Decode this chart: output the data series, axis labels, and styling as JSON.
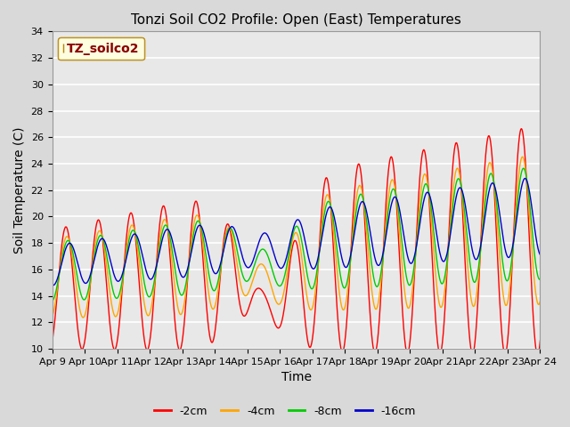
{
  "title": "Tonzi Soil CO2 Profile: Open (East) Temperatures",
  "xlabel": "Time",
  "ylabel": "Soil Temperature (C)",
  "ylim": [
    10,
    34
  ],
  "xlim": [
    0,
    15
  ],
  "background_color": "#d9d9d9",
  "plot_bg": "#e8e8e8",
  "grid_color": "white",
  "legend_label": "TZ_soilco2",
  "series_labels": [
    "-2cm",
    "-4cm",
    "-8cm",
    "-16cm"
  ],
  "series_colors": [
    "#ff0000",
    "#ffa500",
    "#00cc00",
    "#0000cc"
  ],
  "xtick_labels": [
    "Apr 9",
    "Apr 10",
    "Apr 11",
    "Apr 12",
    "Apr 13",
    "Apr 14",
    "Apr 15",
    "Apr 16",
    "Apr 17",
    "Apr 18",
    "Apr 19",
    "Apr 20",
    "Apr 21",
    "Apr 22",
    "Apr 23",
    "Apr 24"
  ],
  "ytick_values": [
    10,
    12,
    14,
    16,
    18,
    20,
    22,
    24,
    26,
    28,
    30,
    32,
    34
  ],
  "title_fontsize": 11,
  "axis_label_fontsize": 10,
  "tick_fontsize": 8,
  "legend_fontsize": 9
}
